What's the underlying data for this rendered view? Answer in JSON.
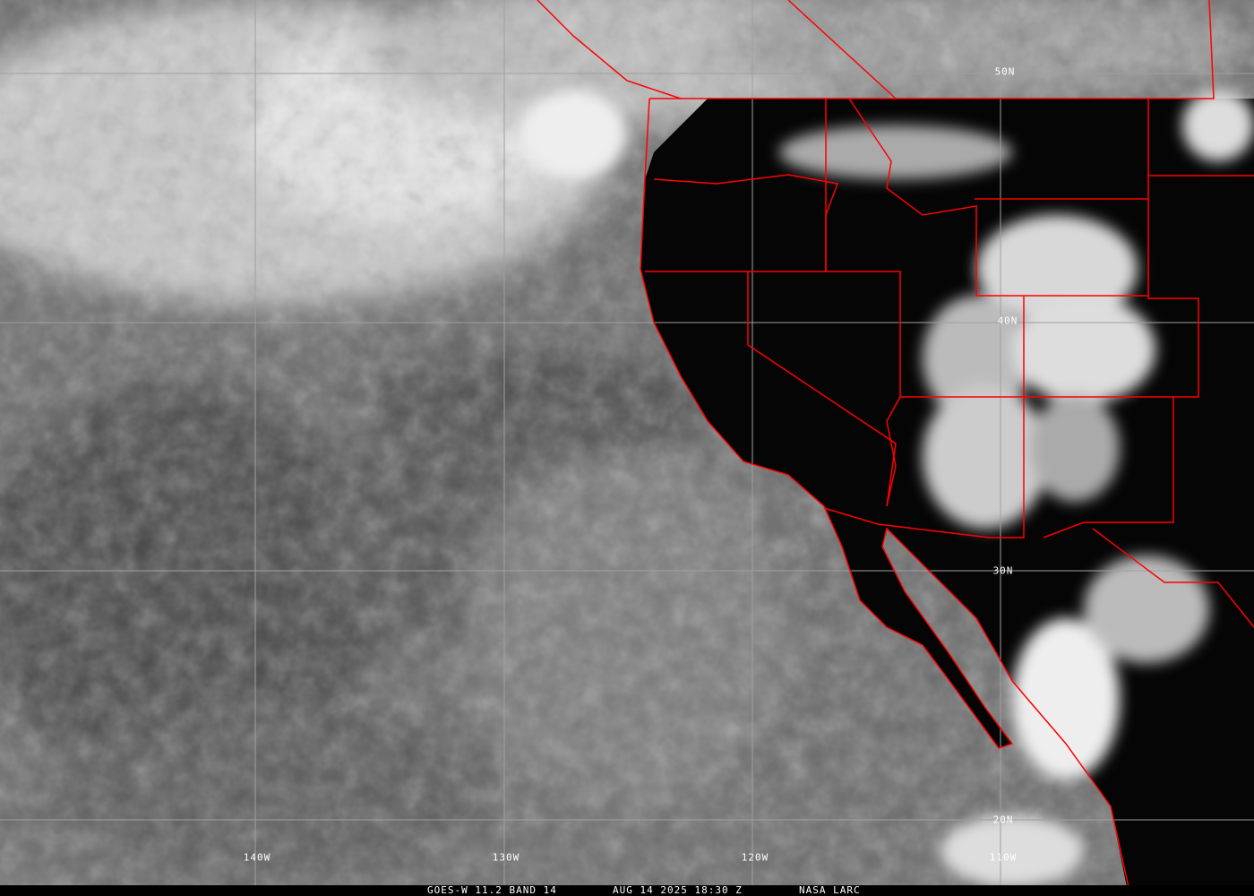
{
  "footer": {
    "satellite": "GOES-W 11.2 BAND 14",
    "datetime": "AUG 14 2025 18:30 Z",
    "source": "NASA LARC"
  },
  "grid": {
    "latitudes": [
      "50N",
      "40N",
      "30N",
      "20N"
    ],
    "longitudes": [
      "140W",
      "130W",
      "120W",
      "110W"
    ]
  },
  "colors": {
    "borders": "#ff0000",
    "grid": "#a0a0a0",
    "land": "#050505",
    "ocean": "#6a6a6a"
  }
}
